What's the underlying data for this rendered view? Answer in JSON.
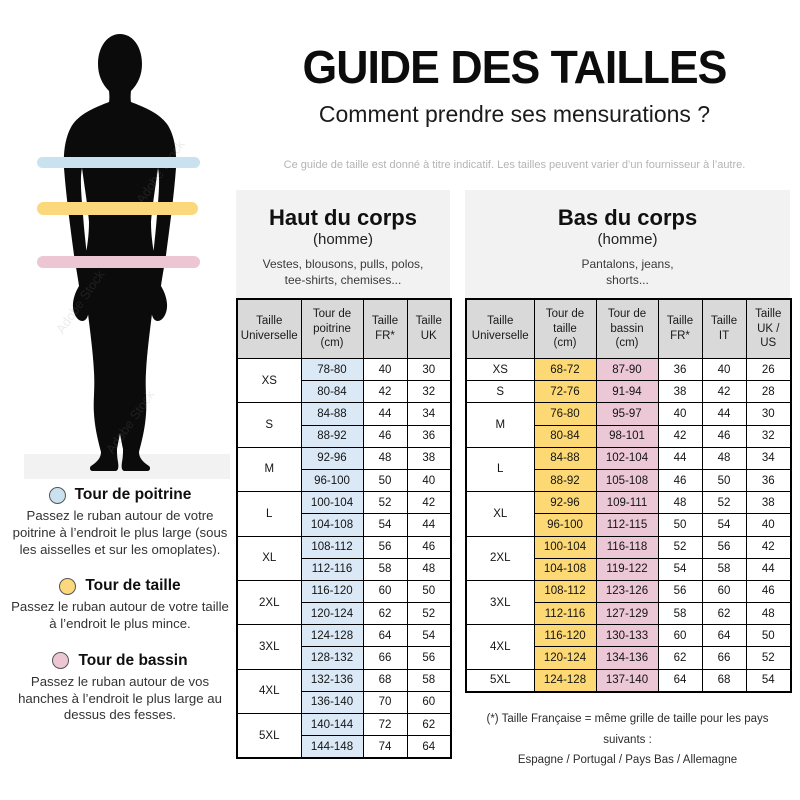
{
  "page": {
    "title": "GUIDE DES TAILLES",
    "subtitle": "Comment prendre ses mensurations ?",
    "disclaimer": "Ce guide de taille est donné à titre indicatif. Les tailles peuvent varier d’un fournisseur à l’autre."
  },
  "watermark": "Adobe Stock",
  "colors": {
    "chest_band": "#c9e2ef",
    "waist_band": "#fbd87b",
    "hip_band": "#ecc6d3",
    "table_blue": "#dbe9f6",
    "table_yellow": "#fcd975",
    "table_pink": "#ecc7d5",
    "header_gray": "#d9d9d9",
    "panel_gray": "#f2f2f2"
  },
  "legend": {
    "items": [
      {
        "title": "Tour de poitrine",
        "color": "#c9e2ef",
        "text": "Passez le ruban autour de votre poitrine à l’endroit le plus large (sous les aisselles et sur les omoplates)."
      },
      {
        "title": "Tour de taille",
        "color": "#fbd87b",
        "text": "Passez le ruban autour de votre taille à l’endroit le plus mince."
      },
      {
        "title": "Tour de bassin",
        "color": "#ecc6d3",
        "text": "Passez le ruban autour de vos hanches à l’endroit le plus large au dessus des fesses."
      }
    ]
  },
  "upper_table": {
    "section_title": "Haut du corps",
    "section_subtitle": "(homme)",
    "section_items": "Vestes, blousons, pulls, polos,\ntee-shirts, chemises...",
    "headers": [
      "Taille\nUniverselle",
      "Tour de\npoitrine\n(cm)",
      "Taille\nFR*",
      "Taille\nUK"
    ],
    "groups": [
      {
        "size": "XS",
        "rows": [
          [
            "78-80",
            "40",
            "30"
          ],
          [
            "80-84",
            "42",
            "32"
          ]
        ]
      },
      {
        "size": "S",
        "rows": [
          [
            "84-88",
            "44",
            "34"
          ],
          [
            "88-92",
            "46",
            "36"
          ]
        ]
      },
      {
        "size": "M",
        "rows": [
          [
            "92-96",
            "48",
            "38"
          ],
          [
            "96-100",
            "50",
            "40"
          ]
        ]
      },
      {
        "size": "L",
        "rows": [
          [
            "100-104",
            "52",
            "42"
          ],
          [
            "104-108",
            "54",
            "44"
          ]
        ]
      },
      {
        "size": "XL",
        "rows": [
          [
            "108-112",
            "56",
            "46"
          ],
          [
            "112-116",
            "58",
            "48"
          ]
        ]
      },
      {
        "size": "2XL",
        "rows": [
          [
            "116-120",
            "60",
            "50"
          ],
          [
            "120-124",
            "62",
            "52"
          ]
        ]
      },
      {
        "size": "3XL",
        "rows": [
          [
            "124-128",
            "64",
            "54"
          ],
          [
            "128-132",
            "66",
            "56"
          ]
        ]
      },
      {
        "size": "4XL",
        "rows": [
          [
            "132-136",
            "68",
            "58"
          ],
          [
            "136-140",
            "70",
            "60"
          ]
        ]
      },
      {
        "size": "5XL",
        "rows": [
          [
            "140-144",
            "72",
            "62"
          ],
          [
            "144-148",
            "74",
            "64"
          ]
        ]
      }
    ]
  },
  "lower_table": {
    "section_title": "Bas du corps",
    "section_subtitle": "(homme)",
    "section_items": "Pantalons, jeans,\nshorts...",
    "headers": [
      "Taille\nUniverselle",
      "Tour de\ntaille\n(cm)",
      "Tour de\nbassin\n(cm)",
      "Taille\nFR*",
      "Taille\nIT",
      "Taille\nUK /\nUS"
    ],
    "groups": [
      {
        "size": "XS",
        "rows": [
          [
            "68-72",
            "87-90",
            "36",
            "40",
            "26"
          ]
        ]
      },
      {
        "size": "S",
        "rows": [
          [
            "72-76",
            "91-94",
            "38",
            "42",
            "28"
          ]
        ]
      },
      {
        "size": "M",
        "rows": [
          [
            "76-80",
            "95-97",
            "40",
            "44",
            "30"
          ],
          [
            "80-84",
            "98-101",
            "42",
            "46",
            "32"
          ]
        ]
      },
      {
        "size": "L",
        "rows": [
          [
            "84-88",
            "102-104",
            "44",
            "48",
            "34"
          ],
          [
            "88-92",
            "105-108",
            "46",
            "50",
            "36"
          ]
        ]
      },
      {
        "size": "XL",
        "rows": [
          [
            "92-96",
            "109-111",
            "48",
            "52",
            "38"
          ],
          [
            "96-100",
            "112-115",
            "50",
            "54",
            "40"
          ]
        ]
      },
      {
        "size": "2XL",
        "rows": [
          [
            "100-104",
            "116-118",
            "52",
            "56",
            "42"
          ],
          [
            "104-108",
            "119-122",
            "54",
            "58",
            "44"
          ]
        ]
      },
      {
        "size": "3XL",
        "rows": [
          [
            "108-112",
            "123-126",
            "56",
            "60",
            "46"
          ],
          [
            "112-116",
            "127-129",
            "58",
            "62",
            "48"
          ]
        ]
      },
      {
        "size": "4XL",
        "rows": [
          [
            "116-120",
            "130-133",
            "60",
            "64",
            "50"
          ],
          [
            "120-124",
            "134-136",
            "62",
            "66",
            "52"
          ]
        ]
      },
      {
        "size": "5XL",
        "rows": [
          [
            "124-128",
            "137-140",
            "64",
            "68",
            "54"
          ]
        ]
      }
    ]
  },
  "footnote": {
    "line1": "(*) Taille Française = même grille de taille pour les pays suivants :",
    "line2": "Espagne / Portugal / Pays Bas / Allemagne"
  }
}
